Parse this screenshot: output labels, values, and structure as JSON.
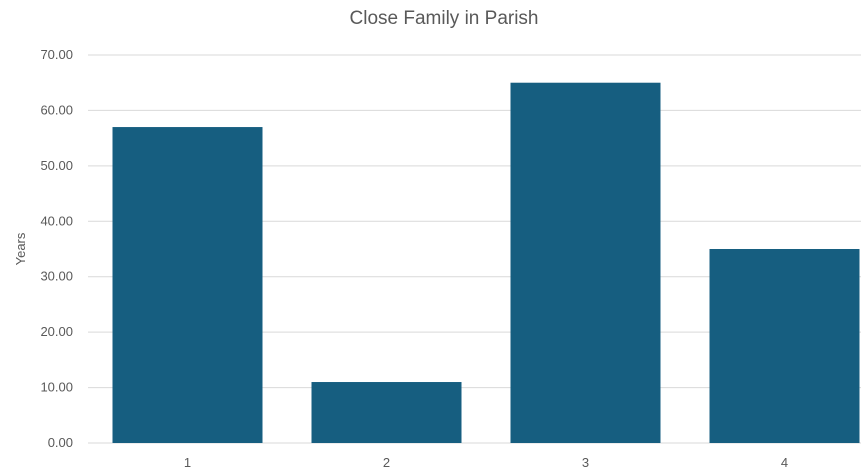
{
  "chart_data": {
    "type": "bar",
    "title": "Close Family in Parish",
    "xlabel": "",
    "ylabel": "Years",
    "categories": [
      "1",
      "2",
      "3",
      "4"
    ],
    "values": [
      57,
      11,
      65,
      35
    ],
    "ylim": [
      0,
      70
    ],
    "yticks": [
      "0.00",
      "10.00",
      "20.00",
      "30.00",
      "40.00",
      "50.00",
      "60.00",
      "70.00"
    ],
    "grid": true,
    "legend": "none",
    "bar_color": "#165e80",
    "grid_color": "#d9d9d9"
  }
}
